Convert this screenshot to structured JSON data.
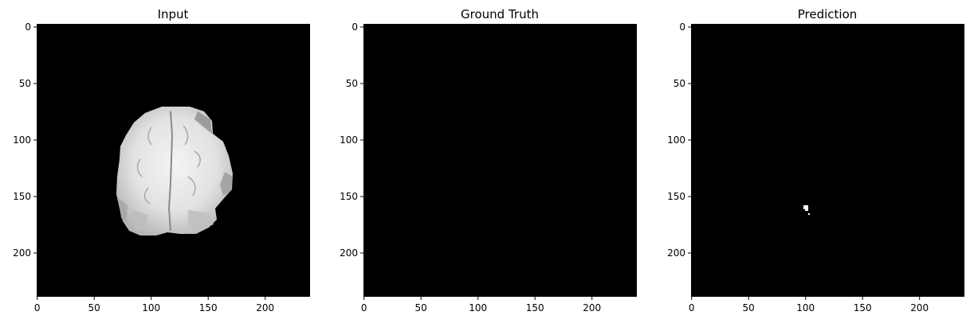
{
  "panels": [
    {
      "title": "Input",
      "x_ticks": [
        "0",
        "50",
        "100",
        "150",
        "200"
      ],
      "y_ticks": [
        "0",
        "50",
        "100",
        "150",
        "200"
      ]
    },
    {
      "title": "Ground Truth",
      "x_ticks": [
        "0",
        "50",
        "100",
        "150",
        "200"
      ],
      "y_ticks": [
        "0",
        "50",
        "100",
        "150",
        "200"
      ]
    },
    {
      "title": "Prediction",
      "x_ticks": [
        "0",
        "50",
        "100",
        "150",
        "200"
      ],
      "y_ticks": [
        "0",
        "50",
        "100",
        "150",
        "200"
      ]
    }
  ],
  "colors": {
    "image_background": "#000000",
    "tissue": "#e6e6e6",
    "mask": "#ffffff"
  }
}
